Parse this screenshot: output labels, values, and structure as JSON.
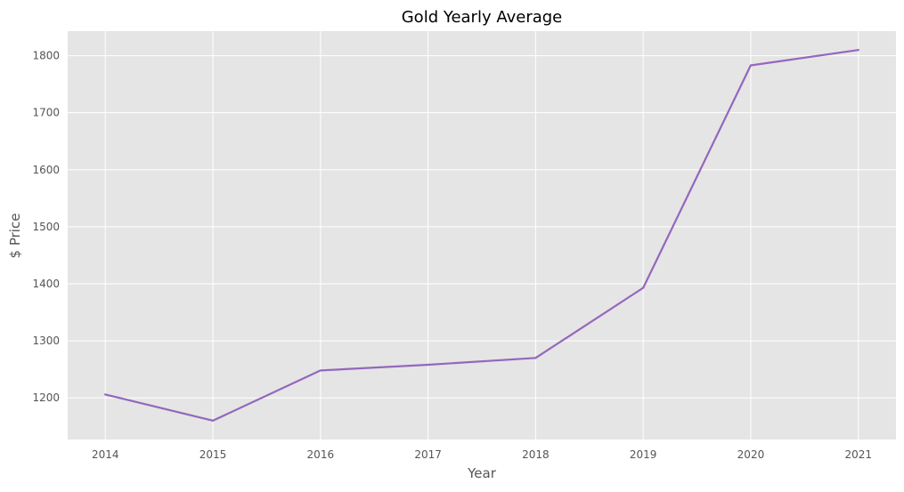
{
  "chart_data": {
    "type": "line",
    "title": "Gold Yearly Average",
    "xlabel": "Year",
    "ylabel": "$ Price",
    "x": [
      2014,
      2015,
      2016,
      2017,
      2018,
      2019,
      2020,
      2021
    ],
    "series": [
      {
        "values": [
          1206,
          1160,
          1248,
          1258,
          1270,
          1393,
          1783,
          1810
        ],
        "color": "#9467bd"
      }
    ],
    "xticks": [
      "2014",
      "2015",
      "2016",
      "2017",
      "2018",
      "2019",
      "2020",
      "2021"
    ],
    "yticks": [
      1200,
      1300,
      1400,
      1500,
      1600,
      1700,
      1800
    ],
    "xlim": [
      2013.65,
      2021.35
    ],
    "ylim": [
      1127,
      1843
    ],
    "grid": true,
    "legend": "none"
  }
}
